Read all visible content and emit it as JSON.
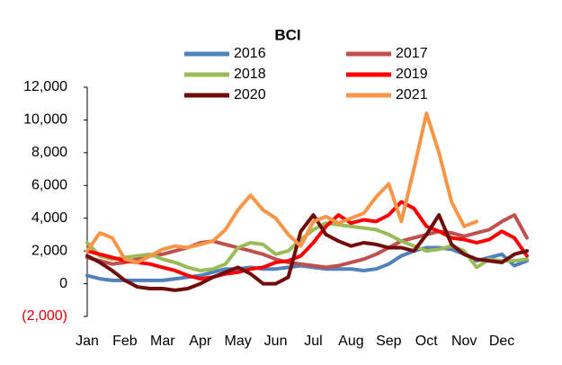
{
  "chart_data": {
    "type": "line",
    "title": "BCI",
    "categories": [
      "Jan",
      null,
      null,
      "Feb",
      null,
      null,
      "Mar",
      null,
      null,
      "Apr",
      null,
      null,
      "May",
      null,
      null,
      "Jun",
      null,
      null,
      "Jul",
      null,
      null,
      "Aug",
      null,
      null,
      "Sep",
      null,
      null,
      "Oct",
      null,
      null,
      "Nov",
      null,
      null,
      "Dec",
      null,
      null
    ],
    "ylim": [
      -2000,
      12000
    ],
    "yticks": [
      {
        "value": -2000,
        "label": "(2,000)"
      },
      0,
      {
        "value": 2000,
        "label": "2,000"
      },
      {
        "value": 4000,
        "label": "4,000"
      },
      {
        "value": 6000,
        "label": "6,000"
      },
      {
        "value": 8000,
        "label": "8,000"
      },
      {
        "value": 10000,
        "label": "10,000"
      },
      {
        "value": 12000,
        "label": "12,000"
      }
    ],
    "negative_tick_color": "#e00000",
    "grid": false,
    "series": [
      {
        "name": "2016",
        "color": "#4f81bd",
        "values": [
          500,
          300,
          200,
          200,
          200,
          200,
          200,
          300,
          400,
          500,
          700,
          900,
          900,
          1000,
          900,
          900,
          1000,
          1100,
          1000,
          900,
          900,
          900,
          800,
          900,
          1200,
          1700,
          2000,
          2200,
          2200,
          2100,
          1800,
          1400,
          1600,
          1800,
          1100,
          1400
        ]
      },
      {
        "name": "2017",
        "color": "#c0504d",
        "values": [
          1600,
          1400,
          1200,
          1300,
          1500,
          1700,
          1800,
          2000,
          2200,
          2500,
          2600,
          2400,
          2200,
          2000,
          1800,
          1500,
          1300,
          1200,
          1100,
          1000,
          1100,
          1300,
          1500,
          1800,
          2200,
          2600,
          2800,
          3000,
          3200,
          3100,
          2900,
          3100,
          3300,
          3800,
          4200,
          2800
        ]
      },
      {
        "name": "2018",
        "color": "#9bbb59",
        "values": [
          2500,
          1700,
          1500,
          1600,
          1700,
          1800,
          1500,
          1300,
          1000,
          800,
          900,
          1200,
          2200,
          2500,
          2400,
          1800,
          2000,
          2700,
          3300,
          3700,
          3600,
          3500,
          3400,
          3300,
          3000,
          2600,
          2300,
          2000,
          2100,
          2300,
          2000,
          1000,
          1500,
          1400,
          1400,
          1500
        ]
      },
      {
        "name": "2019",
        "color": "#ff0000",
        "values": [
          2000,
          1800,
          1600,
          1400,
          1300,
          1200,
          1000,
          800,
          500,
          300,
          400,
          600,
          700,
          900,
          1000,
          1300,
          1400,
          1700,
          2500,
          3500,
          4200,
          3700,
          3900,
          3800,
          4200,
          5000,
          4600,
          3500,
          3200,
          2800,
          2700,
          2500,
          2700,
          3200,
          2800,
          1700
        ]
      },
      {
        "name": "2020",
        "color": "#700c0c",
        "values": [
          1700,
          1300,
          800,
          200,
          -200,
          -300,
          -300,
          -400,
          -300,
          0,
          400,
          700,
          1000,
          600,
          0,
          0,
          400,
          3200,
          4200,
          3000,
          2600,
          2300,
          2500,
          2400,
          2200,
          2200,
          2000,
          3000,
          4200,
          2400,
          1800,
          1500,
          1400,
          1300,
          1800,
          2000
        ]
      },
      {
        "name": "2021",
        "color": "#f79646",
        "values": [
          2000,
          3100,
          2800,
          1500,
          1300,
          1700,
          2100,
          2300,
          2200,
          2400,
          2600,
          3300,
          4500,
          5400,
          4500,
          4000,
          3000,
          2300,
          3800,
          4100,
          3700,
          4000,
          4300,
          5300,
          6100,
          3800,
          7000,
          10400,
          8000,
          5000,
          3500,
          3800,
          null,
          null,
          null,
          null
        ]
      }
    ]
  }
}
